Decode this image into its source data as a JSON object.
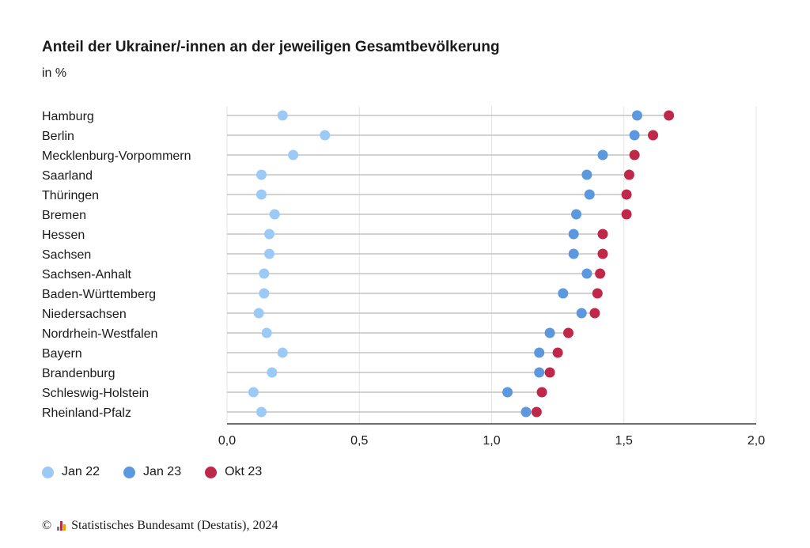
{
  "header": {
    "title": "Anteil der Ukrainer/-innen an der jeweiligen Gesamtbevölkerung",
    "subtitle": "in %"
  },
  "footer": {
    "copyright_symbol": "©",
    "source": "Statistisches Bundesamt (Destatis), 2024"
  },
  "chart_data": {
    "type": "scatter",
    "title": "Anteil der Ukrainer/-innen an der jeweiligen Gesamtbevölkerung",
    "subtitle": "in %",
    "orientation": "horizontal",
    "categories": [
      "Hamburg",
      "Berlin",
      "Mecklenburg-Vorpommern",
      "Saarland",
      "Thüringen",
      "Bremen",
      "Hessen",
      "Sachsen",
      "Sachsen-Anhalt",
      "Baden-Württemberg",
      "Niedersachsen",
      "Nordrhein-Westfalen",
      "Bayern",
      "Brandenburg",
      "Schleswig-Holstein",
      "Rheinland-Pfalz"
    ],
    "series": [
      {
        "name": "Jan 22",
        "color": "#9ccaf7",
        "values": [
          0.21,
          0.37,
          0.25,
          0.13,
          0.13,
          0.18,
          0.16,
          0.16,
          0.14,
          0.14,
          0.12,
          0.15,
          0.21,
          0.17,
          0.1,
          0.13
        ]
      },
      {
        "name": "Jan 23",
        "color": "#5b98de",
        "values": [
          1.55,
          1.54,
          1.42,
          1.36,
          1.37,
          1.32,
          1.31,
          1.31,
          1.36,
          1.27,
          1.34,
          1.22,
          1.18,
          1.18,
          1.06,
          1.13
        ]
      },
      {
        "name": "Okt 23",
        "color": "#c0284a",
        "values": [
          1.67,
          1.61,
          1.54,
          1.52,
          1.51,
          1.51,
          1.42,
          1.42,
          1.41,
          1.4,
          1.39,
          1.29,
          1.25,
          1.22,
          1.19,
          1.17
        ]
      }
    ],
    "xlim": [
      0,
      2.0
    ],
    "xticks": [
      "0,0",
      "0,5",
      "1,0",
      "1,5",
      "2,0"
    ],
    "tick_values": [
      0,
      0.5,
      1.0,
      1.5,
      2.0
    ],
    "grid": true,
    "legend_position": "bottom-left"
  }
}
